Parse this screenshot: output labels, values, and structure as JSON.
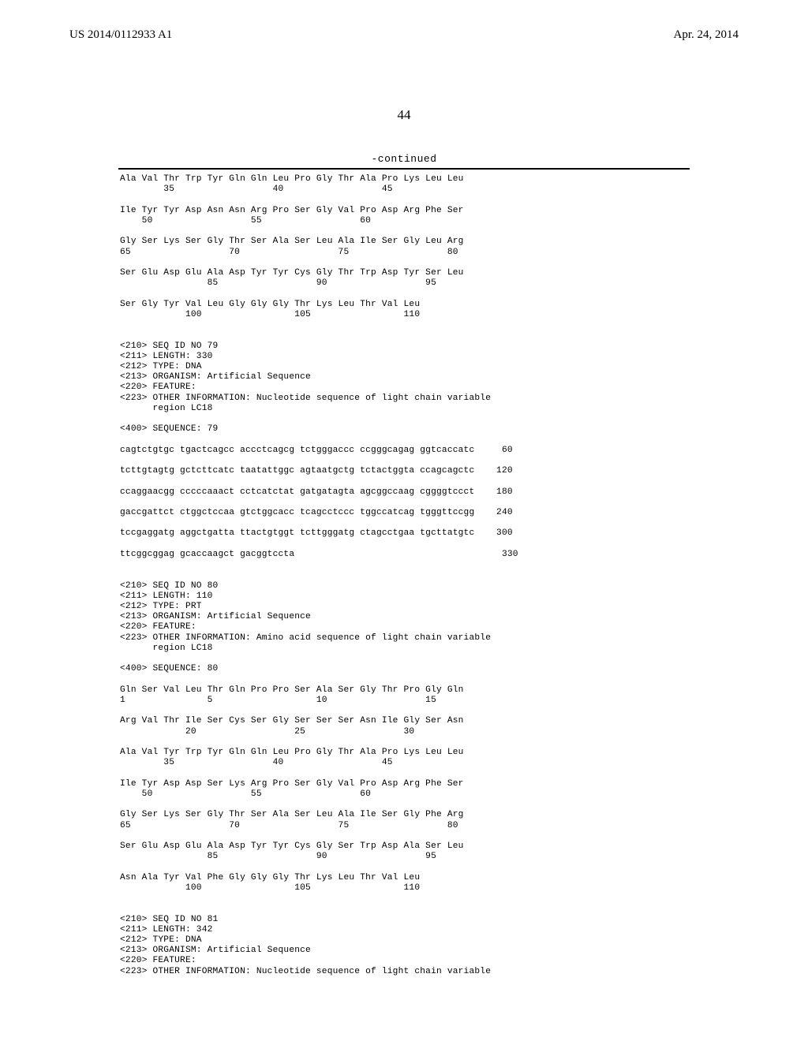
{
  "header": {
    "publication_number": "US 2014/0112933 A1",
    "publication_date": "Apr. 24, 2014"
  },
  "page_number": "44",
  "continued_label": "-continued",
  "sequence_listing": "Ala Val Thr Trp Tyr Gln Gln Leu Pro Gly Thr Ala Pro Lys Leu Leu\n        35                  40                  45\n\nIle Tyr Tyr Asp Asn Asn Arg Pro Ser Gly Val Pro Asp Arg Phe Ser\n    50                  55                  60\n\nGly Ser Lys Ser Gly Thr Ser Ala Ser Leu Ala Ile Ser Gly Leu Arg\n65                  70                  75                  80\n\nSer Glu Asp Glu Ala Asp Tyr Tyr Cys Gly Thr Trp Asp Tyr Ser Leu\n                85                  90                  95\n\nSer Gly Tyr Val Leu Gly Gly Gly Thr Lys Leu Thr Val Leu\n            100                 105                 110\n\n\n<210> SEQ ID NO 79\n<211> LENGTH: 330\n<212> TYPE: DNA\n<213> ORGANISM: Artificial Sequence\n<220> FEATURE:\n<223> OTHER INFORMATION: Nucleotide sequence of light chain variable\n      region LC18\n\n<400> SEQUENCE: 79\n\ncagtctgtgc tgactcagcc accctcagcg tctgggaccc ccgggcagag ggtcaccatc     60\n\ntcttgtagtg gctcttcatc taatattggc agtaatgctg tctactggta ccagcagctc    120\n\nccaggaacgg cccccaaact cctcatctat gatgatagta agcggccaag cggggtccct    180\n\ngaccgattct ctggctccaa gtctggcacc tcagcctccc tggccatcag tgggttccgg    240\n\ntccgaggatg aggctgatta ttactgtggt tcttgggatg ctagcctgaa tgcttatgtc    300\n\nttcggcggag gcaccaagct gacggtccta                                      330\n\n\n<210> SEQ ID NO 80\n<211> LENGTH: 110\n<212> TYPE: PRT\n<213> ORGANISM: Artificial Sequence\n<220> FEATURE:\n<223> OTHER INFORMATION: Amino acid sequence of light chain variable\n      region LC18\n\n<400> SEQUENCE: 80\n\nGln Ser Val Leu Thr Gln Pro Pro Ser Ala Ser Gly Thr Pro Gly Gln\n1               5                   10                  15\n\nArg Val Thr Ile Ser Cys Ser Gly Ser Ser Ser Asn Ile Gly Ser Asn\n            20                  25                  30\n\nAla Val Tyr Trp Tyr Gln Gln Leu Pro Gly Thr Ala Pro Lys Leu Leu\n        35                  40                  45\n\nIle Tyr Asp Asp Ser Lys Arg Pro Ser Gly Val Pro Asp Arg Phe Ser\n    50                  55                  60\n\nGly Ser Lys Ser Gly Thr Ser Ala Ser Leu Ala Ile Ser Gly Phe Arg\n65                  70                  75                  80\n\nSer Glu Asp Glu Ala Asp Tyr Tyr Cys Gly Ser Trp Asp Ala Ser Leu\n                85                  90                  95\n\nAsn Ala Tyr Val Phe Gly Gly Gly Thr Lys Leu Thr Val Leu\n            100                 105                 110\n\n\n<210> SEQ ID NO 81\n<211> LENGTH: 342\n<212> TYPE: DNA\n<213> ORGANISM: Artificial Sequence\n<220> FEATURE:\n<223> OTHER INFORMATION: Nucleotide sequence of light chain variable"
}
